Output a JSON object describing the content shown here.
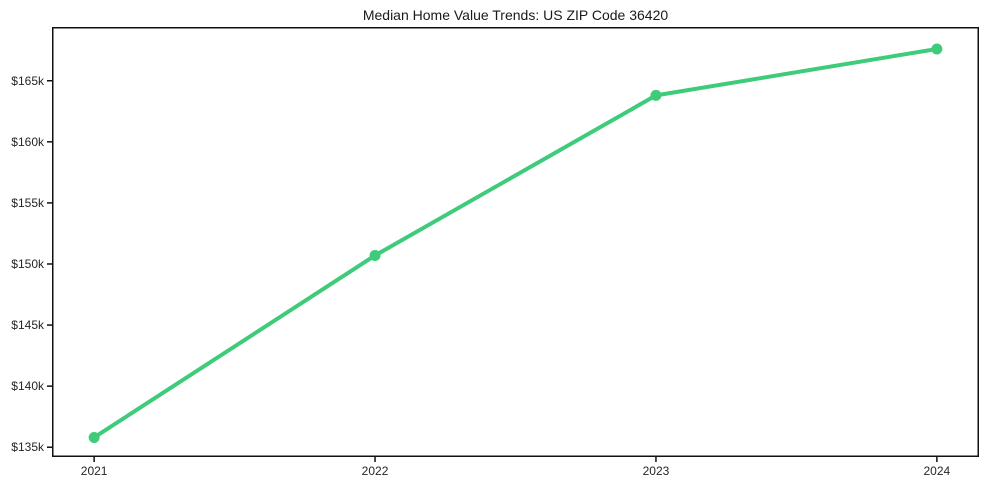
{
  "chart_data": {
    "type": "line",
    "title": "Median Home Value Trends: US ZIP Code 36420",
    "categories": [
      "2021",
      "2022",
      "2023",
      "2024"
    ],
    "x": [
      2021,
      2022,
      2023,
      2024
    ],
    "series": [
      {
        "name": "Median Home Value",
        "values": [
          135.8,
          150.7,
          163.8,
          167.6
        ],
        "unit": "$k"
      }
    ],
    "xlabel": "",
    "ylabel": "",
    "xlim": [
      2020.85,
      2024.15
    ],
    "ylim": [
      134.2,
      169.4
    ],
    "xticks": [
      {
        "value": 2021,
        "label": "2021"
      },
      {
        "value": 2022,
        "label": "2022"
      },
      {
        "value": 2023,
        "label": "2023"
      },
      {
        "value": 2024,
        "label": "2024"
      }
    ],
    "yticks": [
      {
        "value": 135,
        "label": "$135k"
      },
      {
        "value": 140,
        "label": "$140k"
      },
      {
        "value": 145,
        "label": "$145k"
      },
      {
        "value": 150,
        "label": "$150k"
      },
      {
        "value": 155,
        "label": "$155k"
      },
      {
        "value": 160,
        "label": "$160k"
      },
      {
        "value": 165,
        "label": "$165k"
      }
    ],
    "grid": false,
    "legend_position": "none",
    "colors": {
      "line": "#3ecb7a",
      "marker": "#3ecb7a",
      "text": "#262626",
      "spine": "#111111",
      "background": "#ffffff"
    }
  }
}
